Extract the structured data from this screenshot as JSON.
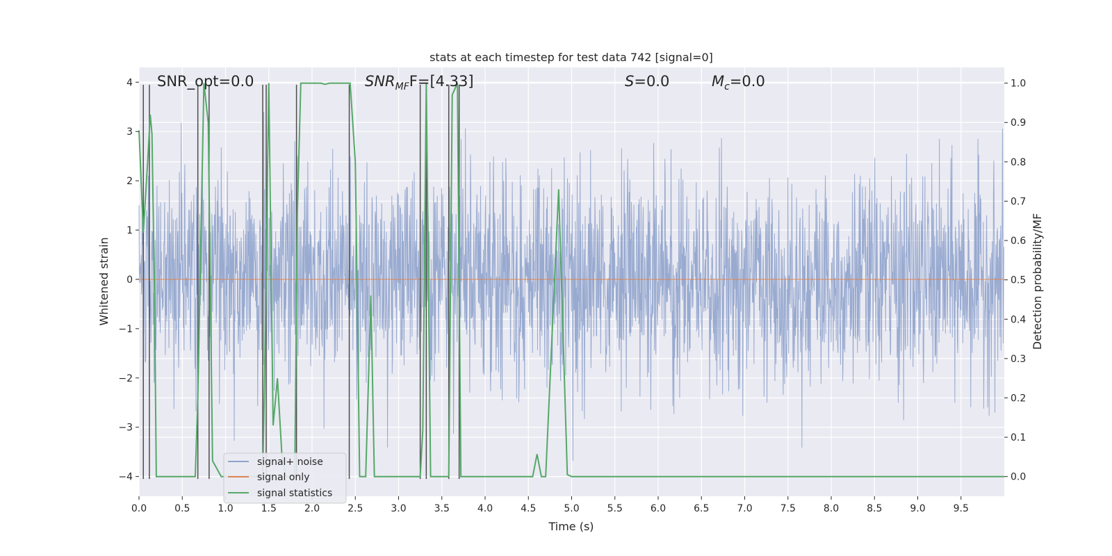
{
  "chart_data": {
    "type": "line",
    "title": "stats at each timestep for test data 742 [signal=0]",
    "xlabel": "Time (s)",
    "ylabel": "Whitened strain",
    "y2label": "Detection probability/MF",
    "xlim": [
      0,
      10
    ],
    "ylim": [
      -4.4,
      4.3
    ],
    "y2lim": [
      -0.05,
      1.04
    ],
    "grid": true,
    "legend_position": "lower-left",
    "xticks": [
      "0.0",
      "0.5",
      "1.0",
      "1.5",
      "2.0",
      "2.5",
      "3.0",
      "3.5",
      "4.0",
      "4.5",
      "5.0",
      "5.5",
      "6.0",
      "6.5",
      "7.0",
      "7.5",
      "8.0",
      "8.5",
      "9.0",
      "9.5"
    ],
    "yticks": [
      "−4",
      "−3",
      "−2",
      "−1",
      "0",
      "1",
      "2",
      "3",
      "4"
    ],
    "y2ticks": [
      "0.0",
      "0.1",
      "0.2",
      "0.3",
      "0.4",
      "0.5",
      "0.6",
      "0.7",
      "0.8",
      "0.9",
      "1.0"
    ],
    "annotations": {
      "snr_opt": "SNR_opt=0.0",
      "snr_mf_main": "SNR",
      "snr_mf_sub": "MF",
      "snr_mf_tail": "F=[4.33]",
      "s_main": "S",
      "s_tail": "=0.0",
      "mc_main": "M",
      "mc_sub": "c",
      "mc_tail": "=0.0"
    },
    "series": [
      {
        "name": "signal+ noise",
        "color": "#8fa3cc",
        "description_values": "noise, roughly within [-3.3, 3.5]"
      },
      {
        "name": "signal only",
        "color": "#dd8452",
        "values_constant": 0.0
      },
      {
        "name": "signal statistics",
        "color": "#55a868",
        "x": [
          0.0,
          0.05,
          0.1,
          0.13,
          0.15,
          0.18,
          0.2,
          0.65,
          0.68,
          0.75,
          0.8,
          0.85,
          0.9,
          0.95,
          1.0,
          1.4,
          1.43,
          1.45,
          1.5,
          1.55,
          1.6,
          1.65,
          1.7,
          1.75,
          1.8,
          1.83,
          1.87,
          1.9,
          2.1,
          2.15,
          2.2,
          2.44,
          2.5,
          2.55,
          2.58,
          2.62,
          2.68,
          2.72,
          3.25,
          3.28,
          3.32,
          3.37,
          3.55,
          3.58,
          3.62,
          3.68,
          3.72,
          4.55,
          4.6,
          4.65,
          4.7,
          4.85,
          4.95,
          5.0,
          10.0
        ],
        "y": [
          0.88,
          0.62,
          0.8,
          0.92,
          0.87,
          0.45,
          0.0,
          0.0,
          0.2,
          1.0,
          0.9,
          0.04,
          0.02,
          0.0,
          0.0,
          0.0,
          0.0,
          0.23,
          1.0,
          0.13,
          0.25,
          0.06,
          0.0,
          0.0,
          0.0,
          0.67,
          1.0,
          1.0,
          1.0,
          0.997,
          1.0,
          1.0,
          0.8,
          0.0,
          0.0,
          0.0,
          0.46,
          0.0,
          0.0,
          0.12,
          1.0,
          0.0,
          0.0,
          0.0,
          0.97,
          1.0,
          0.0,
          0.0,
          0.057,
          0.0,
          0.0,
          0.73,
          0.005,
          0.0,
          0.0
        ]
      },
      {
        "name": "",
        "color": "#4d4d4d",
        "vertical_markers_x": [
          0.05,
          0.12,
          0.68,
          0.81,
          1.43,
          1.47,
          1.82,
          2.43,
          3.25,
          3.32,
          3.58,
          3.7
        ]
      }
    ]
  },
  "legend": {
    "items": [
      {
        "label": "signal+ noise",
        "color": "#8fa3cc"
      },
      {
        "label": "signal only",
        "color": "#dd8452"
      },
      {
        "label": "signal statistics",
        "color": "#55a868"
      }
    ]
  }
}
